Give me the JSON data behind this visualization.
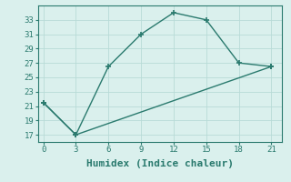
{
  "line1_x": [
    0,
    3,
    6,
    9,
    12,
    15,
    18,
    21
  ],
  "line1_y": [
    21.5,
    17,
    26.5,
    31,
    34,
    33,
    27,
    26.5
  ],
  "line2_x": [
    0,
    3,
    21
  ],
  "line2_y": [
    21.5,
    17,
    26.5
  ],
  "color": "#2a7a6e",
  "bg_color": "#daf0ed",
  "grid_color": "#b8dbd7",
  "xlabel": "Humidex (Indice chaleur)",
  "xlim": [
    -0.5,
    22
  ],
  "ylim": [
    16,
    35
  ],
  "xticks": [
    0,
    3,
    6,
    9,
    12,
    15,
    18,
    21
  ],
  "yticks": [
    17,
    19,
    21,
    23,
    25,
    27,
    29,
    31,
    33
  ],
  "markersize": 4,
  "linewidth": 1.0,
  "xlabel_fontsize": 8,
  "tick_fontsize": 6.5
}
